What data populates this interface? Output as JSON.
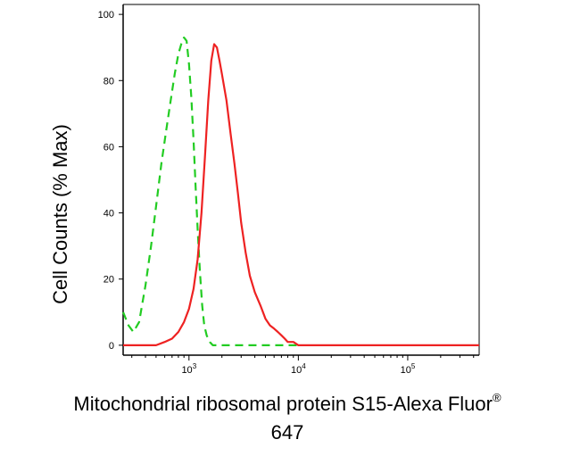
{
  "chart_data": {
    "type": "line",
    "title": "",
    "xlabel_line1": "Mitochondrial ribosomal protein S15-Alexa Fluor",
    "xlabel_sup": "®",
    "xlabel_line2": "647",
    "ylabel": "Cell Counts (% Max)",
    "x_scale": "log",
    "xlim": [
      250,
      450000
    ],
    "ylim": [
      -3,
      103
    ],
    "x_ticks": [
      {
        "value": 1000,
        "mantissa": "10",
        "exp": "3"
      },
      {
        "value": 10000,
        "mantissa": "10",
        "exp": "4"
      },
      {
        "value": 100000,
        "mantissa": "10",
        "exp": "5"
      }
    ],
    "y_ticks": [
      {
        "value": 0,
        "label": "0"
      },
      {
        "value": 20,
        "label": "20"
      },
      {
        "value": 40,
        "label": "40"
      },
      {
        "value": 60,
        "label": "60"
      },
      {
        "value": 80,
        "label": "80"
      },
      {
        "value": 100,
        "label": "100"
      }
    ],
    "grid": false,
    "series": [
      {
        "color": "#22cc22",
        "dash": "dashed",
        "x": [
          250,
          280,
          310,
          350,
          400,
          450,
          500,
          560,
          620,
          680,
          740,
          800,
          850,
          900,
          950,
          1000,
          1050,
          1100,
          1150,
          1200,
          1260,
          1320,
          1380,
          1450,
          1550,
          1650,
          1800,
          2000,
          2500,
          3000,
          5000,
          7000,
          10000
        ],
        "y": [
          10,
          6,
          4,
          7,
          18,
          30,
          42,
          55,
          65,
          74,
          82,
          88,
          91,
          93,
          92,
          85,
          75,
          62,
          48,
          35,
          22,
          12,
          6,
          3,
          1,
          0,
          0,
          0,
          0,
          0,
          0,
          0,
          0
        ]
      },
      {
        "color": "#ee2222",
        "dash": "solid",
        "x": [
          250,
          300,
          400,
          500,
          600,
          700,
          800,
          900,
          1000,
          1100,
          1200,
          1300,
          1400,
          1500,
          1600,
          1700,
          1800,
          1900,
          2000,
          2200,
          2400,
          2600,
          2800,
          3000,
          3300,
          3600,
          4000,
          4500,
          5000,
          5500,
          6000,
          6500,
          7000,
          7500,
          8000,
          9000,
          10000,
          12000,
          15000,
          20000,
          30000,
          60000,
          100000,
          200000,
          300000,
          450000
        ],
        "y": [
          0,
          0,
          0,
          0,
          1,
          2,
          4,
          7,
          11,
          17,
          26,
          40,
          57,
          74,
          86,
          91,
          90,
          86,
          82,
          74,
          64,
          55,
          46,
          37,
          28,
          21,
          16,
          12,
          8,
          6,
          5,
          4,
          3,
          2,
          1,
          1,
          0,
          0,
          0,
          0,
          0,
          0,
          0,
          0,
          0,
          0
        ]
      }
    ]
  },
  "colors": {
    "axis": "#000000"
  }
}
